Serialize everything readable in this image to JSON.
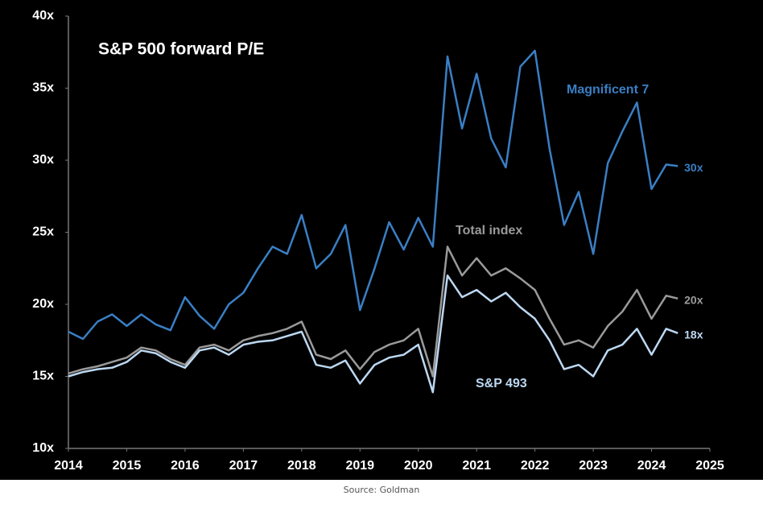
{
  "chart_data": {
    "type": "line",
    "title": "S&P 500 forward P/E",
    "source": "Source: Goldman",
    "x": [
      2014,
      2014.25,
      2014.5,
      2014.75,
      2015,
      2015.25,
      2015.5,
      2015.75,
      2016,
      2016.25,
      2016.5,
      2016.75,
      2017,
      2017.25,
      2017.5,
      2017.75,
      2018,
      2018.25,
      2018.5,
      2018.75,
      2019,
      2019.25,
      2019.5,
      2019.75,
      2020,
      2020.25,
      2020.5,
      2020.75,
      2021,
      2021.25,
      2021.5,
      2021.75,
      2022,
      2022.25,
      2022.5,
      2022.75,
      2023,
      2023.25,
      2023.5,
      2023.75,
      2024,
      2024.25,
      2024.45
    ],
    "series": [
      {
        "name": "Magnificent 7",
        "color": "#3a7fc4",
        "end_label": "30x",
        "values": [
          18.1,
          17.6,
          18.8,
          19.3,
          18.5,
          19.3,
          18.6,
          18.2,
          20.5,
          19.2,
          18.3,
          20.0,
          20.8,
          22.5,
          24.0,
          23.5,
          26.2,
          22.5,
          23.5,
          25.5,
          19.6,
          22.5,
          25.7,
          23.8,
          26.0,
          24.0,
          37.2,
          32.2,
          36.0,
          31.5,
          29.5,
          36.5,
          37.6,
          30.8,
          25.5,
          27.8,
          23.5,
          29.8,
          32.0,
          34.0,
          28.0,
          29.7,
          29.6
        ]
      },
      {
        "name": "Total index",
        "color": "#9a9a9a",
        "end_label": "20x",
        "values": [
          15.2,
          15.5,
          15.7,
          16.0,
          16.3,
          17.0,
          16.8,
          16.2,
          15.8,
          17.0,
          17.2,
          16.8,
          17.5,
          17.8,
          18.0,
          18.3,
          18.8,
          16.5,
          16.2,
          16.8,
          15.5,
          16.7,
          17.2,
          17.5,
          18.3,
          15.0,
          24.0,
          22.0,
          23.2,
          22.0,
          22.5,
          21.8,
          21.0,
          19.0,
          17.2,
          17.5,
          17.0,
          18.5,
          19.5,
          21.0,
          19.0,
          20.6,
          20.4
        ]
      },
      {
        "name": "S&P 493",
        "color": "#bcd8f2",
        "end_label": "18x",
        "values": [
          15.0,
          15.3,
          15.5,
          15.6,
          16.0,
          16.8,
          16.6,
          16.0,
          15.6,
          16.8,
          17.0,
          16.5,
          17.2,
          17.4,
          17.5,
          17.8,
          18.1,
          15.8,
          15.6,
          16.1,
          14.5,
          15.8,
          16.3,
          16.5,
          17.2,
          13.9,
          22.0,
          20.5,
          21.0,
          20.2,
          20.8,
          19.8,
          19.0,
          17.5,
          15.5,
          15.8,
          15.0,
          16.8,
          17.2,
          18.3,
          16.5,
          18.3,
          18.0
        ]
      }
    ],
    "xlim": [
      2014,
      2025
    ],
    "xticks": [
      2014,
      2015,
      2016,
      2017,
      2018,
      2019,
      2020,
      2021,
      2022,
      2023,
      2024,
      2025
    ],
    "ylim": [
      10,
      40
    ],
    "yticks": [
      {
        "value": 10,
        "label": "10x"
      },
      {
        "value": 15,
        "label": "15x"
      },
      {
        "value": 20,
        "label": "20x"
      },
      {
        "value": 25,
        "label": "25x"
      },
      {
        "value": 30,
        "label": "30x"
      },
      {
        "value": 35,
        "label": "35x"
      },
      {
        "value": 40,
        "label": "40x"
      }
    ],
    "grid": false
  }
}
